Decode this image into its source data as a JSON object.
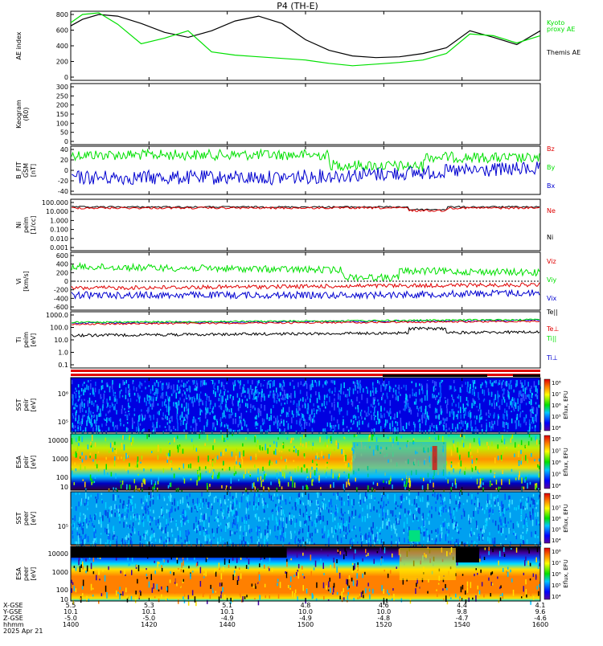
{
  "title": "P4 (TH-E)",
  "colors": {
    "green": "#00e000",
    "black": "#000000",
    "red": "#e00000",
    "blue": "#0000d0"
  },
  "chart_data": [
    {
      "type": "line",
      "id": "ae",
      "ylabel": "AE index",
      "yticks": [
        "800",
        "600",
        "400",
        "200",
        "0"
      ],
      "ylim": [
        -50,
        800
      ],
      "series": [
        {
          "name": "Themis AE",
          "color": "black",
          "x": [
            0,
            5,
            12,
            20,
            30,
            40,
            50,
            60,
            70,
            80,
            90,
            100,
            110,
            120,
            130,
            140,
            150,
            160,
            170,
            180,
            190,
            200
          ],
          "y": [
            620,
            700,
            760,
            740,
            650,
            540,
            480,
            560,
            680,
            740,
            650,
            450,
            320,
            250,
            230,
            240,
            280,
            350,
            560,
            480,
            390,
            560
          ]
        },
        {
          "name": "Kyoto proxy AE",
          "color": "green",
          "x": [
            0,
            5,
            12,
            20,
            30,
            40,
            50,
            60,
            70,
            80,
            90,
            100,
            110,
            120,
            130,
            140,
            150,
            160,
            170,
            180,
            190,
            200
          ],
          "y": [
            660,
            760,
            780,
            640,
            400,
            470,
            560,
            300,
            260,
            240,
            220,
            200,
            160,
            130,
            150,
            170,
            200,
            280,
            520,
            500,
            410,
            500
          ]
        }
      ],
      "legend": [
        "Kyoto",
        "proxy AE",
        "Themis AE"
      ]
    },
    {
      "type": "line",
      "id": "keogram",
      "ylabel": "Keogram",
      "ylabel2": "(R0)",
      "yticks": [
        "300",
        "250",
        "200",
        "150",
        "100",
        "50",
        "0"
      ],
      "ylim": [
        0,
        300
      ]
    },
    {
      "type": "line",
      "id": "bfield",
      "ylabel": "B_FIT",
      "ylabel2": "GSM",
      "ylabel3": "[nT]",
      "yticks": [
        "40",
        "20",
        "0",
        "-20",
        "-40"
      ],
      "ylim": [
        -40,
        50
      ],
      "legend": [
        "Bz",
        "By",
        "Bx"
      ],
      "legend_colors": [
        "red",
        "green",
        "blue"
      ]
    },
    {
      "type": "line",
      "id": "density",
      "ylabel": "Ni",
      "ylabel2": "peim",
      "ylabel3": "[1/cc]",
      "yticks": [
        "100.000",
        "10.000",
        "1.000",
        "0.100",
        "0.010",
        "0.001"
      ],
      "ylim": [
        -3,
        2
      ],
      "scale": "log",
      "legend": [
        "Ne",
        "Ni"
      ],
      "legend_colors": [
        "red",
        "black"
      ]
    },
    {
      "type": "line",
      "id": "velocity",
      "ylabel": "Vi",
      "ylabel2": "[km/s]",
      "yticks": [
        "600",
        "400",
        "200",
        "0",
        "-200",
        "-400",
        "-600"
      ],
      "ylim": [
        -700,
        700
      ],
      "legend": [
        "Viz",
        "Viy",
        "Vix"
      ],
      "legend_colors": [
        "red",
        "green",
        "blue"
      ]
    },
    {
      "type": "line",
      "id": "temperature",
      "ylabel": "Ti",
      "ylabel2": "peim",
      "ylabel3": "[eV]",
      "yticks": [
        "1000.0",
        "100.0",
        "10.0",
        "1.0",
        "0.1"
      ],
      "ylim": [
        -1.5,
        3.6
      ],
      "scale": "log",
      "legend": [
        "Te||",
        "Te⊥",
        "Ti||",
        "Ti⊥"
      ],
      "legend_colors": [
        "black",
        "red",
        "green",
        "blue"
      ]
    },
    {
      "type": "heatmap",
      "id": "sst-ions",
      "ylabel": "SST",
      "ylabel2": "peir",
      "ylabel3": "[eV]",
      "yticks": [
        "10⁶",
        "10⁵"
      ],
      "cbar_ticks": [
        "10⁸",
        "10⁷",
        "10⁶",
        "10⁵",
        "10⁴"
      ],
      "cbar_label": "Eflux, EFU"
    },
    {
      "type": "heatmap",
      "id": "esa-ions",
      "ylabel": "ESA",
      "ylabel2": "peir",
      "ylabel3": "[eV]",
      "yticks": [
        "10000",
        "1000",
        "100",
        "10"
      ],
      "cbar_ticks": [
        "10⁸",
        "10⁷",
        "10⁶",
        "10⁵",
        "10⁴"
      ],
      "cbar_label": "Eflux, EFU"
    },
    {
      "type": "heatmap",
      "id": "sst-electrons",
      "ylabel": "SST",
      "ylabel2": "peer",
      "ylabel3": "[eV]",
      "yticks": [
        "10⁵"
      ],
      "cbar_ticks": [
        "10⁸",
        "10⁷",
        "10⁶",
        "10⁵",
        "10⁴"
      ],
      "cbar_label": "Eflux, EFU"
    },
    {
      "type": "heatmap",
      "id": "esa-electrons",
      "ylabel": "ESA",
      "ylabel2": "peer",
      "ylabel3": "[eV]",
      "yticks": [
        "10000",
        "1000",
        "100",
        "10"
      ],
      "cbar_ticks": [
        "10⁸",
        "10⁷",
        "10⁶",
        "10⁵",
        "10⁴"
      ],
      "cbar_label": "Eflux, EFU"
    }
  ],
  "xaxis": {
    "row_labels": [
      "X-GSE",
      "Y-GSE",
      "Z-GSE",
      "hhmm",
      "2025 Apr 21"
    ],
    "ticks": [
      {
        "x": "5.5",
        "y": "10.1",
        "z": "-5.0",
        "t": "1400"
      },
      {
        "x": "5.3",
        "y": "10.1",
        "z": "-5.0",
        "t": "1420"
      },
      {
        "x": "5.1",
        "y": "10.1",
        "z": "-4.9",
        "t": "1440"
      },
      {
        "x": "4.8",
        "y": "10.0",
        "z": "-4.9",
        "t": "1500"
      },
      {
        "x": "4.6",
        "y": "10.0",
        "z": "-4.8",
        "t": "1520"
      },
      {
        "x": "4.4",
        "y": "9.8",
        "z": "-4.7",
        "t": "1540"
      },
      {
        "x": "4.1",
        "y": "9.6",
        "z": "-4.6",
        "t": "1600"
      }
    ]
  }
}
